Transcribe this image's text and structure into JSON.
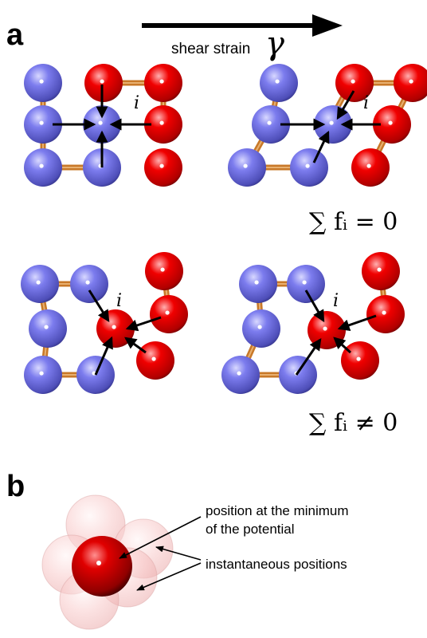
{
  "panel_a": {
    "label": "a",
    "shear_label": "shear strain",
    "shear_symbol": "γ",
    "atom_label": "i",
    "equation_balanced": "∑ fᵢ = 0",
    "equation_unbalanced": "∑ fᵢ ≠ 0"
  },
  "panel_b": {
    "label": "b",
    "annotation_minimum_line1": "position at the minimum",
    "annotation_minimum_line2": "of the potential",
    "annotation_instantaneous": "instantaneous positions"
  },
  "colors": {
    "blue_atom": "#7474e8",
    "red_atom": "#ee0000",
    "bond": "#c87828",
    "arrow": "#000000"
  }
}
